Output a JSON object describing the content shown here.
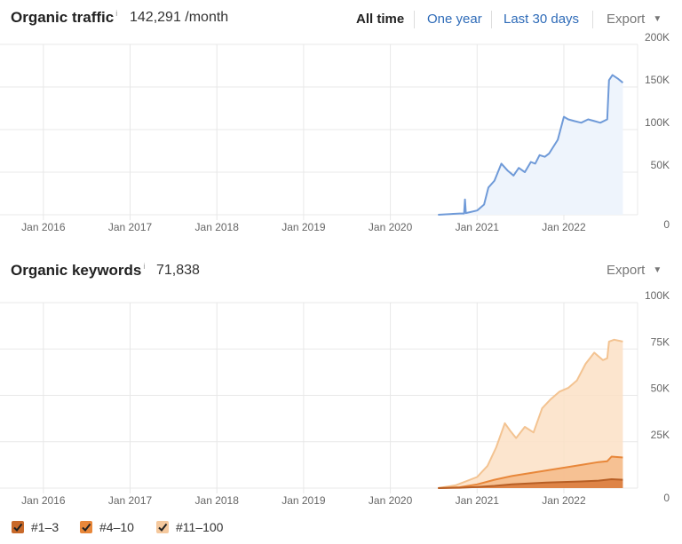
{
  "traffic": {
    "title": "Organic traffic",
    "info": "i",
    "value": "142,291 /month",
    "ranges": [
      "All time",
      "One year",
      "Last 30 days"
    ],
    "export_label": "Export",
    "caret": "▼"
  },
  "keywords": {
    "title": "Organic keywords",
    "info": "i",
    "value": "71,838",
    "export_label": "Export",
    "caret": "▼"
  },
  "legend": [
    {
      "label": "#1–3",
      "color": "#c8692a"
    },
    {
      "label": "#4–10",
      "color": "#e8873a"
    },
    {
      "label": "#11–100",
      "color": "#f5c99e"
    }
  ],
  "colors": {
    "traffic_line": "#6f9ad8",
    "traffic_fill": "#eef4fc",
    "grid": "#e8e8e8"
  },
  "chart_data": [
    {
      "type": "area",
      "title": "Organic traffic",
      "x_ticks": [
        "Jan 2016",
        "Jan 2017",
        "Jan 2018",
        "Jan 2019",
        "Jan 2020",
        "Jan 2021",
        "Jan 2022"
      ],
      "y_ticks": [
        "200K",
        "150K",
        "100K",
        "50K",
        "0"
      ],
      "ylim": [
        0,
        200000
      ],
      "xlim": [
        2015.5,
        2022.85
      ],
      "series": [
        {
          "x": [
            2020.55,
            2020.8,
            2020.85,
            2020.86,
            2020.87,
            2021.0,
            2021.08,
            2021.13,
            2021.2,
            2021.28,
            2021.35,
            2021.42,
            2021.48,
            2021.55,
            2021.62,
            2021.67,
            2021.72,
            2021.78,
            2021.83,
            2021.93,
            2022.0,
            2022.05,
            2022.12,
            2022.2,
            2022.28,
            2022.35,
            2022.42,
            2022.5,
            2022.52,
            2022.56,
            2022.62,
            2022.68
          ],
          "y": [
            0,
            1500,
            1500,
            18000,
            2000,
            5000,
            12000,
            32000,
            40000,
            60000,
            52000,
            46000,
            55000,
            50000,
            62000,
            60000,
            70000,
            68000,
            72000,
            88000,
            115000,
            112000,
            110000,
            108000,
            112000,
            110000,
            108000,
            112000,
            158000,
            164000,
            160000,
            155000
          ]
        }
      ]
    },
    {
      "type": "area",
      "title": "Organic keywords",
      "x_ticks": [
        "Jan 2016",
        "Jan 2017",
        "Jan 2018",
        "Jan 2019",
        "Jan 2020",
        "Jan 2021",
        "Jan 2022"
      ],
      "y_ticks": [
        "100K",
        "75K",
        "50K",
        "25K",
        "0"
      ],
      "ylim": [
        0,
        100000
      ],
      "xlim": [
        2015.5,
        2022.85
      ],
      "series": [
        {
          "name": "#11–100",
          "x": [
            2020.55,
            2020.75,
            2021.0,
            2021.12,
            2021.22,
            2021.32,
            2021.38,
            2021.45,
            2021.55,
            2021.65,
            2021.75,
            2021.85,
            2021.95,
            2022.05,
            2022.15,
            2022.25,
            2022.35,
            2022.45,
            2022.5,
            2022.52,
            2022.58,
            2022.68
          ],
          "y": [
            0,
            1500,
            6000,
            12000,
            22000,
            35000,
            31000,
            27000,
            33000,
            30000,
            43000,
            48000,
            52000,
            54000,
            58000,
            67000,
            73000,
            69000,
            70000,
            79000,
            80000,
            79000
          ]
        },
        {
          "name": "#4–10",
          "x": [
            2020.55,
            2020.8,
            2021.0,
            2021.2,
            2021.4,
            2021.6,
            2021.8,
            2022.0,
            2022.2,
            2022.4,
            2022.5,
            2022.55,
            2022.68
          ],
          "y": [
            0,
            500,
            2000,
            4500,
            6500,
            8000,
            9500,
            11000,
            12500,
            14000,
            14500,
            17000,
            16500
          ]
        },
        {
          "name": "#1–3",
          "x": [
            2020.55,
            2020.8,
            2021.0,
            2021.2,
            2021.4,
            2021.6,
            2021.8,
            2022.0,
            2022.2,
            2022.4,
            2022.55,
            2022.68
          ],
          "y": [
            0,
            200,
            600,
            1200,
            2000,
            2500,
            3000,
            3300,
            3600,
            4000,
            4800,
            4500
          ]
        }
      ]
    }
  ]
}
